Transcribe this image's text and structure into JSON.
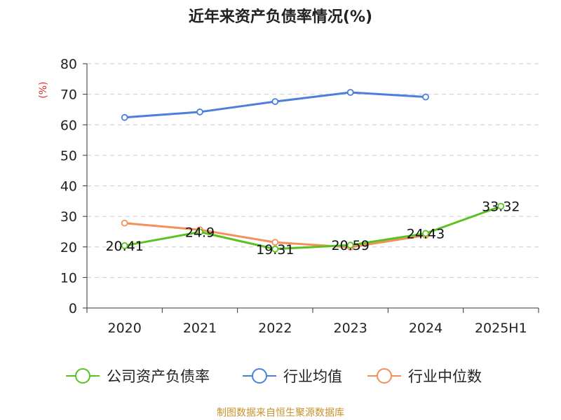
{
  "title": "近年来资产负债率情况(%)",
  "source": "制图数据来自恒生聚源数据库",
  "chart_data": {
    "type": "line",
    "title": "近年来资产负债率情况(%)",
    "ylabel": "(%)",
    "xlabel": "",
    "categories": [
      "2020",
      "2021",
      "2022",
      "2023",
      "2024",
      "2025H1"
    ],
    "yticks": [
      0,
      10,
      20,
      30,
      40,
      50,
      60,
      70,
      80
    ],
    "ylim": [
      0,
      80
    ],
    "grid": true,
    "legend_position": "bottom",
    "series": [
      {
        "name": "公司资产负债率",
        "color": "#5ac21f",
        "values": [
          20.41,
          24.9,
          19.31,
          20.59,
          24.43,
          33.32
        ],
        "labels": [
          "20.41",
          "24.9",
          "19.31",
          "20.59",
          "24.43",
          "33.32"
        ]
      },
      {
        "name": "行业均值",
        "color": "#4a7fdc",
        "values": [
          62.4,
          64.2,
          67.6,
          70.6,
          69.1,
          null
        ]
      },
      {
        "name": "行业中位数",
        "color": "#f58f5a",
        "values": [
          27.8,
          25.6,
          21.5,
          19.9,
          23.8,
          null
        ]
      }
    ]
  }
}
